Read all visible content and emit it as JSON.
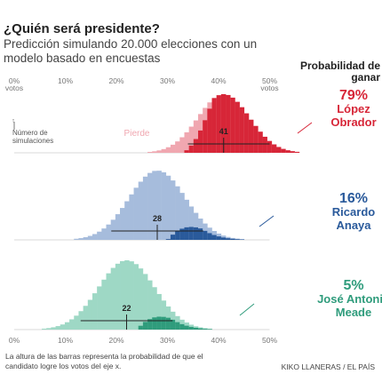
{
  "header": {
    "title": "¿Quién será presidente?",
    "subtitle": "Predicción simulando 20.000 elecciones con un modelo basado en encuestas",
    "prob_heading": "Probabilidad de ganar"
  },
  "footer": {
    "note": "La altura de las barras representa la probabilidad de que el candidato logre los votos del eje x.",
    "credit": "KIKO LLANERAS / EL PAÍS"
  },
  "chart_data": {
    "type": "histogram",
    "x_ticks": [
      {
        "value": 0,
        "label": "0%",
        "sublabel": "votos"
      },
      {
        "value": 10,
        "label": "10%"
      },
      {
        "value": 20,
        "label": "20%"
      },
      {
        "value": 30,
        "label": "30%"
      },
      {
        "value": 40,
        "label": "40%"
      },
      {
        "value": 50,
        "label": "50%",
        "sublabel": "votos"
      }
    ],
    "xlim": [
      0,
      50
    ],
    "y_annotation": "Número de simulaciones",
    "lose_label": "Pierde",
    "series": [
      {
        "candidate": "López Obrador",
        "name_lines": [
          "López",
          "Obrador"
        ],
        "win_probability": "79%",
        "median": 41,
        "median_label": "41",
        "interval": [
          34,
          50
        ],
        "color_win": "#d72638",
        "color_lose": "#f0a7b0",
        "sd": 5.0
      },
      {
        "candidate": "Ricardo Anaya",
        "name_lines": [
          "Ricardo",
          "Anaya"
        ],
        "win_probability": "16%",
        "median": 28,
        "median_label": "28",
        "interval": [
          19,
          37
        ],
        "color_win": "#2a5a9b",
        "color_lose": "#a6bcdc",
        "sd": 5.5
      },
      {
        "candidate": "José Antonio Meade",
        "name_lines": [
          "José Antonio",
          "Meade"
        ],
        "win_probability": "5%",
        "median": 22,
        "median_label": "22",
        "interval": [
          13,
          31
        ],
        "color_win": "#2f9c7c",
        "color_lose": "#9ed8c5",
        "sd": 5.5
      }
    ]
  }
}
